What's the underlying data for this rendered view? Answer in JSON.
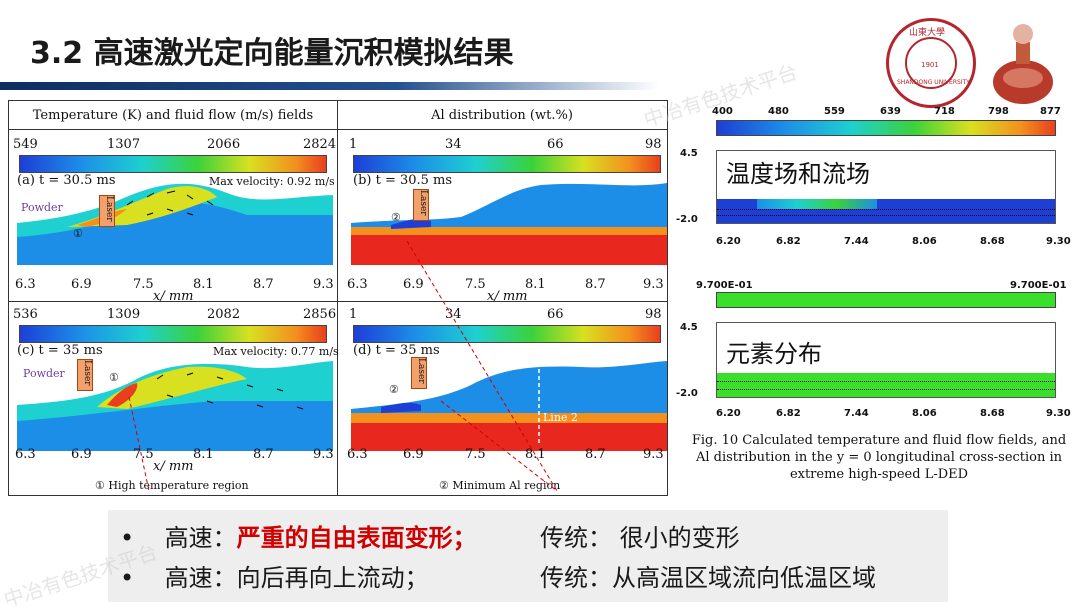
{
  "slide": {
    "title": "3.2 高速激光定向能量沉积模拟结果",
    "logo": {
      "top_text": "山東大學",
      "bottom_text": "SHANDONG UNIVERSITY",
      "year": "1901"
    }
  },
  "figure_left": {
    "col_headers": [
      "Temperature (K) and fluid flow (m/s) fields",
      "Al distribution (wt.%)"
    ],
    "temp_ticks_a": [
      "549",
      "1307",
      "2066",
      "2824"
    ],
    "temp_ticks_c": [
      "536",
      "1309",
      "2082",
      "2856"
    ],
    "al_ticks": [
      "1",
      "34",
      "66",
      "98"
    ],
    "x_ticks": [
      "6.3",
      "6.9",
      "7.5",
      "8.1",
      "8.7",
      "9.3"
    ],
    "x_label": "x/ mm",
    "panel_a": {
      "label": "(a) t = 30.5 ms",
      "vel": "Max velocity: 0.92 m/s",
      "powder": "Powder",
      "laser": "Laser",
      "marker": "①"
    },
    "panel_b": {
      "label": "(b) t = 30.5 ms",
      "laser": "Laser",
      "marker": "②"
    },
    "panel_c": {
      "label": "(c) t = 35 ms",
      "vel": "Max velocity: 0.77 m/s",
      "powder": "Powder",
      "laser": "Laser",
      "marker": "①"
    },
    "panel_d": {
      "label": "(d) t = 35 ms",
      "laser": "Laser",
      "marker": "②",
      "line": "Line 2"
    },
    "legend_1": "①    High temperature region",
    "legend_2": "②    Minimum Al region"
  },
  "figure_right": {
    "temp_ticks": [
      "400",
      "480",
      "559",
      "639",
      "718",
      "798",
      "877"
    ],
    "y_ticks": [
      "4.5",
      "-2.0"
    ],
    "x_ticks": [
      "6.20",
      "6.82",
      "7.44",
      "8.06",
      "8.68",
      "9.30"
    ],
    "label_top": "温度场和流场",
    "al_ticks": [
      "9.700E-01",
      "9.700E-01"
    ],
    "label_bottom": "元素分布",
    "caption": "Fig. 10 Calculated temperature and fluid flow fields, and Al distribution in the y = 0 longitudinal cross-section in extreme high-speed L-DED"
  },
  "bullets": [
    {
      "dot": "•",
      "lead": "高速：",
      "highlight": "严重的自由表面变形；",
      "trad": "传统：  很小的变形"
    },
    {
      "dot": "•",
      "lead": "高速：向后再向上流动；",
      "highlight": "",
      "trad": "传统：从高温区域流向低温区域"
    }
  ],
  "watermark": "中冶有色技术平台",
  "colors": {
    "title_bar": "#0d2d63",
    "highlight": "#d00000",
    "melt_red": "#e8281e",
    "substrate_blue": "#1d8ee8"
  }
}
